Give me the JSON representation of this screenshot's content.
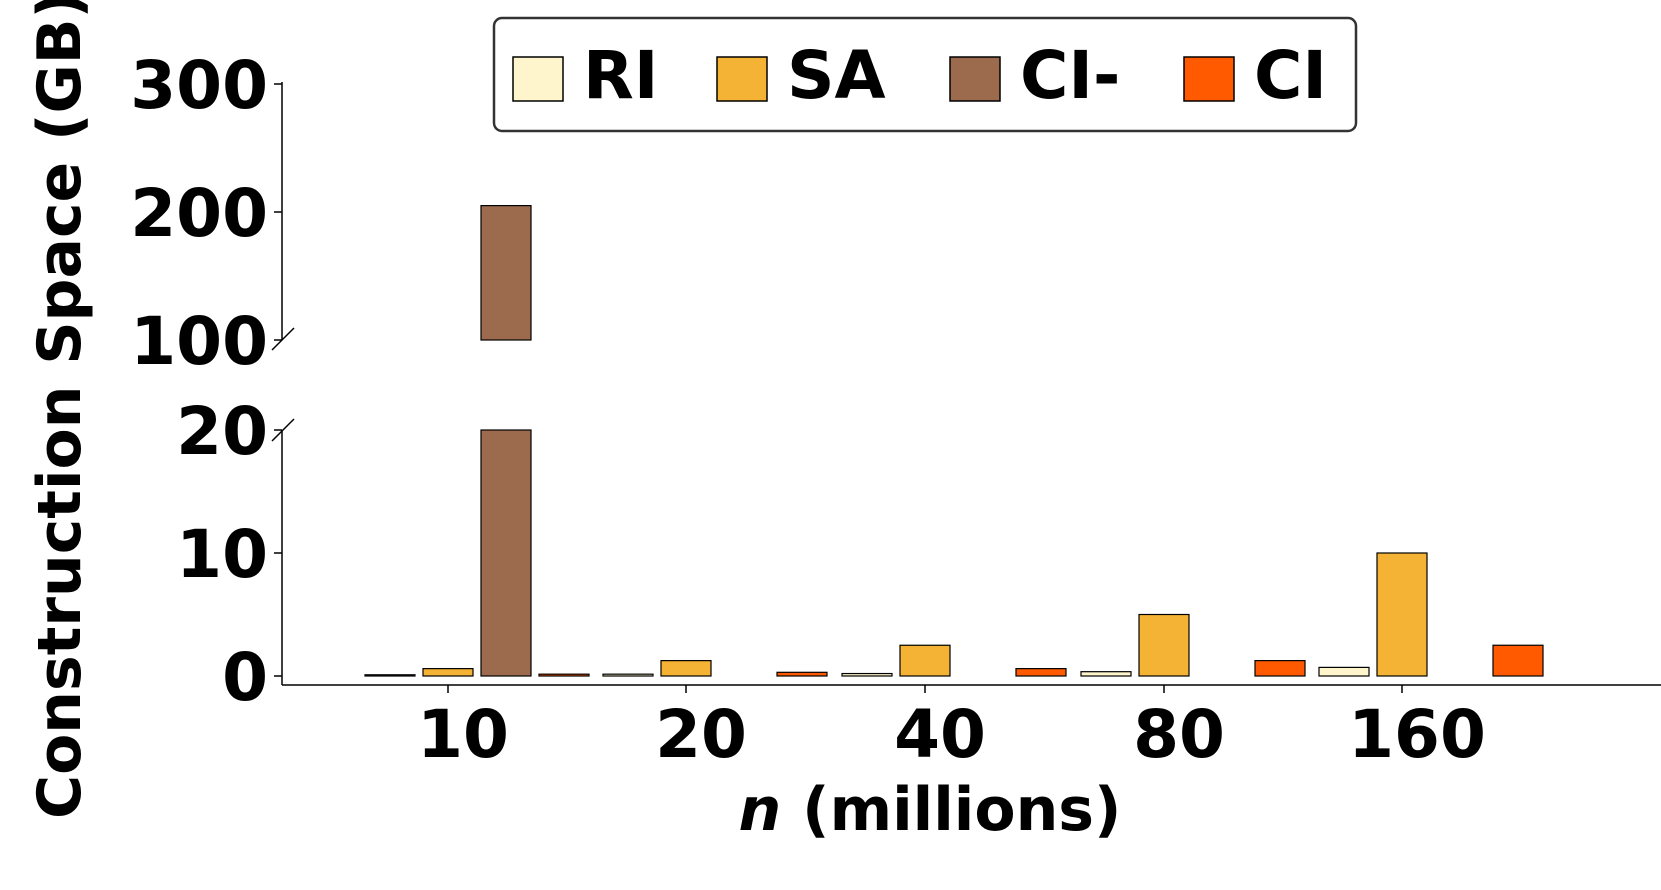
{
  "chart_data": {
    "type": "bar",
    "title": "",
    "xlabel_italic": "n",
    "xlabel_rest": " (millions)",
    "ylabel": "Construction Space (GB)",
    "categories": [
      "10",
      "20",
      "40",
      "80",
      "160"
    ],
    "series": [
      {
        "name": "RI",
        "color": "#FFF5CC",
        "values": [
          0.1,
          0.15,
          0.2,
          0.35,
          0.7
        ]
      },
      {
        "name": "SA",
        "color": "#F5B335",
        "values": [
          0.6,
          1.25,
          2.5,
          5.0,
          10.0
        ]
      },
      {
        "name": "CI-",
        "color": "#9C6B4E",
        "values": [
          205,
          null,
          null,
          null,
          null
        ]
      },
      {
        "name": "CI",
        "color": "#FF5A00",
        "values": [
          0.15,
          0.3,
          0.6,
          1.25,
          2.5
        ]
      }
    ],
    "broken_axis": {
      "lower": {
        "ylim": [
          0,
          20
        ],
        "ticks": [
          "0",
          "10",
          "20"
        ]
      },
      "upper": {
        "ylim": [
          100,
          300
        ],
        "ticks": [
          "100",
          "200",
          "300"
        ]
      }
    },
    "legend": {
      "placement": "top-center",
      "ncol": 4
    },
    "grid": false
  }
}
